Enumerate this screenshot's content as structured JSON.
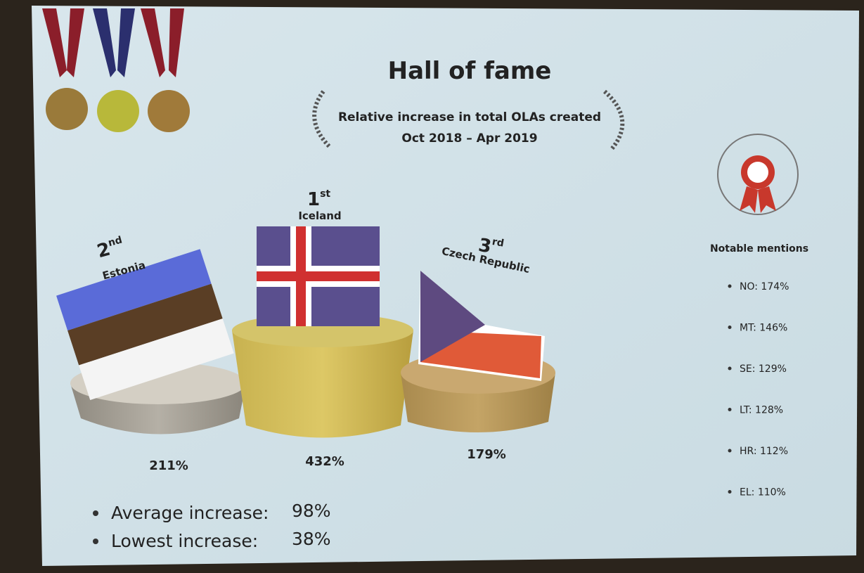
{
  "header": {
    "title": "Hall of fame",
    "subtitle_line1": "Relative increase in total OLAs created",
    "subtitle_line2": "Oct 2018 – Apr 2019"
  },
  "podium": [
    {
      "rank": "2",
      "rank_suffix": "nd",
      "country": "Estonia",
      "value": "211%"
    },
    {
      "rank": "1",
      "rank_suffix": "st",
      "country": "Iceland",
      "value": "432%"
    },
    {
      "rank": "3",
      "rank_suffix": "rd",
      "country": "Czech Republic",
      "value": "179%"
    }
  ],
  "notable_mentions": {
    "heading": "Notable mentions",
    "items": [
      "NO: 174%",
      "MT: 146%",
      "SE: 129%",
      "LT: 128%",
      "HR: 112%",
      "EL: 110%"
    ]
  },
  "summary": [
    {
      "label": "Average increase:",
      "value": "98%"
    },
    {
      "label": "Lowest increase:",
      "value": "38%"
    }
  ]
}
